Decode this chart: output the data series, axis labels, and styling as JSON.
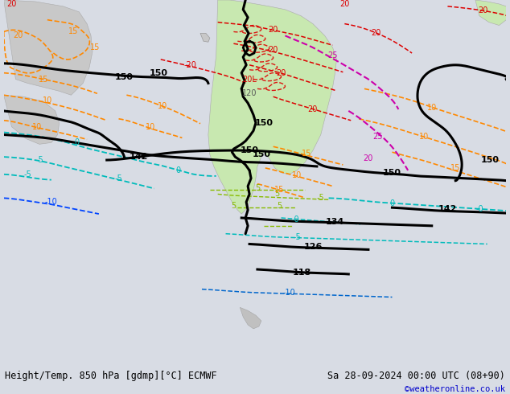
{
  "bottom_left_text": "Height/Temp. 850 hPa [gdmp][°C] ECMWF",
  "bottom_right_text": "Sa 28-09-2024 00:00 UTC (08+90)",
  "bottom_credit": "©weatheronline.co.uk",
  "fig_width": 6.34,
  "fig_height": 4.9,
  "dpi": 100,
  "bg_color": "#d8dce4",
  "ocean_color": "#d8dce4",
  "land_sa_color": "#c8e8b0",
  "land_gray_color": "#c8c8c8",
  "land_green_right": "#c8e8b0",
  "font_size_bottom": 8.5,
  "font_size_credit": 7.5
}
